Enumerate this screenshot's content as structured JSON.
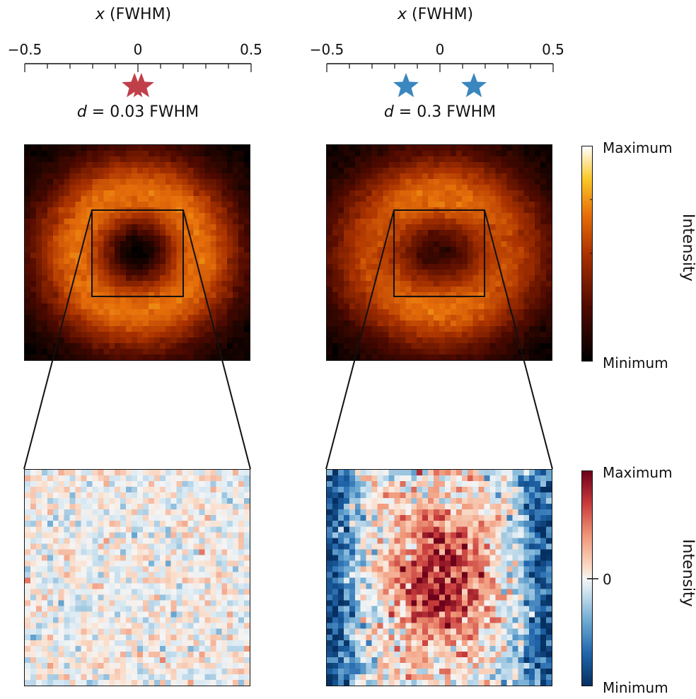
{
  "top_axis": {
    "title_var": "x",
    "title_unit": "(FWHM)",
    "tick_labels": [
      "−0.5",
      "0",
      "0.5"
    ],
    "range": [
      -0.5,
      0.5
    ]
  },
  "left_panel": {
    "separation_var": "d",
    "separation_text": " = 0.03 FWHM",
    "separation": 0.03,
    "star_color": "#c0404a",
    "emitter_positions": [
      -0.015,
      0.015
    ]
  },
  "right_panel": {
    "separation_var": "d",
    "separation_text": " = 0.3 FWHM",
    "separation": 0.3,
    "star_color": "#3a87c0",
    "emitter_positions": [
      -0.15,
      0.15
    ]
  },
  "top_colorbar": {
    "colormap": "hot",
    "max_label": "Maximum",
    "min_label": "Minimum",
    "title": "Intensity"
  },
  "bottom_colorbar": {
    "colormap": "diverging red-blue",
    "max_label": "Maximum",
    "mid_label": "0",
    "min_label": "Minimum",
    "title": "Intensity"
  }
}
